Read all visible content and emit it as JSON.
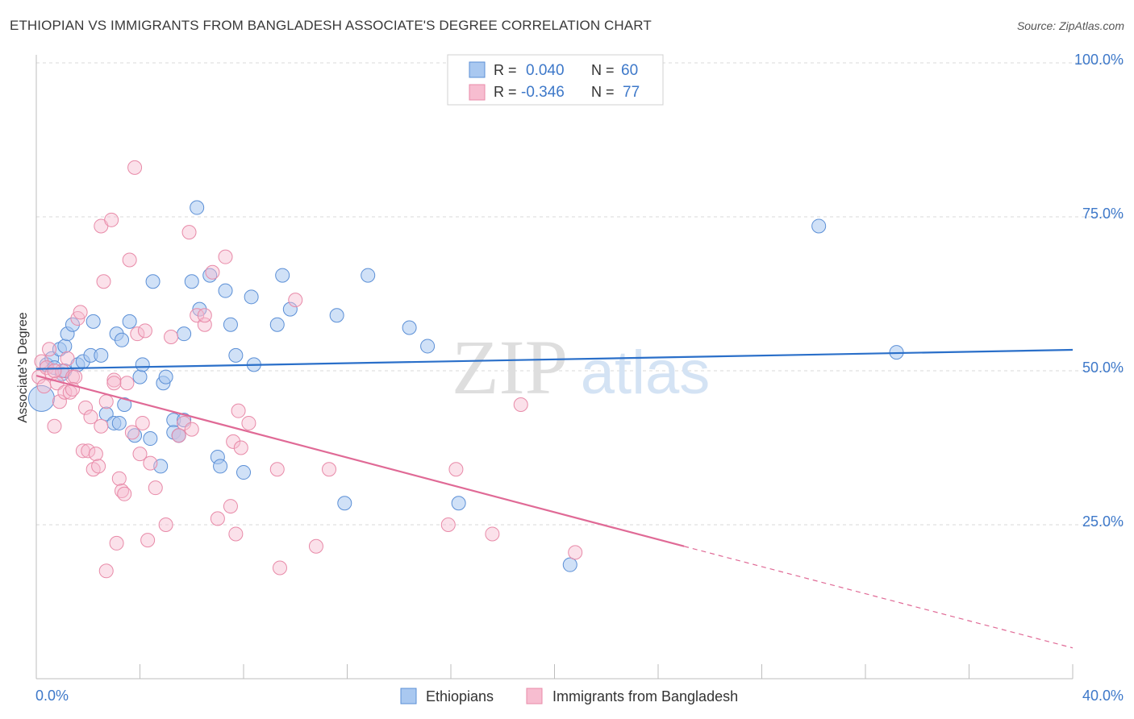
{
  "title": "ETHIOPIAN VS IMMIGRANTS FROM BANGLADESH ASSOCIATE'S DEGREE CORRELATION CHART",
  "source": "Source: ZipAtlas.com",
  "watermark": {
    "zip": "ZIP",
    "atlas": "atlas"
  },
  "chart_data": {
    "type": "scatter",
    "title": "ETHIOPIAN VS IMMIGRANTS FROM BANGLADESH ASSOCIATE'S DEGREE CORRELATION CHART",
    "xlabel": "",
    "ylabel": "Associate's Degree",
    "xlim": [
      0,
      40
    ],
    "ylim": [
      0,
      105
    ],
    "x_tick_labels": [
      "0.0%",
      "40.0%"
    ],
    "y_ticks": [
      25,
      50,
      75,
      100
    ],
    "y_tick_labels": [
      "25.0%",
      "50.0%",
      "75.0%",
      "100.0%"
    ],
    "grid": true,
    "legend": {
      "position": "top-center",
      "rows": [
        {
          "r_label": "R =",
          "r_value": "0.040",
          "n_label": "N =",
          "n_value": "60"
        },
        {
          "r_label": "R =",
          "r_value": "-0.346",
          "n_label": "N =",
          "n_value": "77"
        }
      ]
    },
    "bottom_legend": [
      "Ethiopians",
      "Immigrants from Bangladesh"
    ],
    "colors": {
      "ethiopians_fill": "#a9c8f0",
      "ethiopians_stroke": "#5b8fd6",
      "ethiopians_line": "#2a6fc9",
      "bangladesh_fill": "#f7bdd0",
      "bangladesh_stroke": "#e88aa8",
      "bangladesh_line": "#e06a96",
      "value_text": "#3d78c9",
      "grid": "#d9d9d9"
    },
    "series": [
      {
        "name": "Ethiopians",
        "R": 0.04,
        "N": 60,
        "trend": {
          "x0": 0,
          "y0": 50.3,
          "x1": 40,
          "y1": 53.4
        },
        "points": [
          [
            0.2,
            45.5
          ],
          [
            0.4,
            51.0
          ],
          [
            0.6,
            52.0
          ],
          [
            0.7,
            50.5
          ],
          [
            0.9,
            53.5
          ],
          [
            1.0,
            49.5
          ],
          [
            1.1,
            54.0
          ],
          [
            1.2,
            56.0
          ],
          [
            1.4,
            57.5
          ],
          [
            1.6,
            51.0
          ],
          [
            1.8,
            51.5
          ],
          [
            2.1,
            52.5
          ],
          [
            2.2,
            58.0
          ],
          [
            2.5,
            52.5
          ],
          [
            2.7,
            43.0
          ],
          [
            3.0,
            41.5
          ],
          [
            3.1,
            56.0
          ],
          [
            3.2,
            41.5
          ],
          [
            3.3,
            55.0
          ],
          [
            3.4,
            44.5
          ],
          [
            3.6,
            58.0
          ],
          [
            3.8,
            39.5
          ],
          [
            4.0,
            49.0
          ],
          [
            4.1,
            51.0
          ],
          [
            4.4,
            39.0
          ],
          [
            4.5,
            64.5
          ],
          [
            4.8,
            34.5
          ],
          [
            4.9,
            48.0
          ],
          [
            5.0,
            49.0
          ],
          [
            5.3,
            42.0
          ],
          [
            5.3,
            40.0
          ],
          [
            5.5,
            39.5
          ],
          [
            5.7,
            42.0
          ],
          [
            5.7,
            56.0
          ],
          [
            6.0,
            64.5
          ],
          [
            6.2,
            76.5
          ],
          [
            6.3,
            60.0
          ],
          [
            6.7,
            65.5
          ],
          [
            7.0,
            36.0
          ],
          [
            7.1,
            34.5
          ],
          [
            7.3,
            63.0
          ],
          [
            7.5,
            57.5
          ],
          [
            7.7,
            52.5
          ],
          [
            8.0,
            33.5
          ],
          [
            8.3,
            62.0
          ],
          [
            8.4,
            51.0
          ],
          [
            9.3,
            57.5
          ],
          [
            9.5,
            65.5
          ],
          [
            9.8,
            60.0
          ],
          [
            11.6,
            59.0
          ],
          [
            11.9,
            28.5
          ],
          [
            12.8,
            65.5
          ],
          [
            14.4,
            57.0
          ],
          [
            15.1,
            54.0
          ],
          [
            16.3,
            28.5
          ],
          [
            20.6,
            18.5
          ],
          [
            30.2,
            73.5
          ],
          [
            33.2,
            53.0
          ],
          [
            5.5,
            39.5
          ],
          [
            1.1,
            50.0
          ]
        ]
      },
      {
        "name": "Immigrants from Bangladesh",
        "R": -0.346,
        "N": 77,
        "trend": {
          "x0": 0,
          "y0": 49.2,
          "x1": 25,
          "y1": 21.5,
          "dash_x1": 40,
          "dash_y1": 5.0
        },
        "points": [
          [
            0.1,
            49.0
          ],
          [
            0.2,
            51.5
          ],
          [
            0.3,
            47.5
          ],
          [
            0.4,
            50.5
          ],
          [
            0.5,
            53.5
          ],
          [
            0.6,
            49.5
          ],
          [
            0.7,
            41.0
          ],
          [
            0.8,
            48.0
          ],
          [
            0.9,
            45.0
          ],
          [
            1.0,
            50.0
          ],
          [
            1.1,
            46.5
          ],
          [
            1.2,
            52.0
          ],
          [
            1.3,
            46.5
          ],
          [
            1.4,
            49.0
          ],
          [
            1.5,
            49.0
          ],
          [
            1.6,
            58.5
          ],
          [
            1.7,
            59.5
          ],
          [
            1.8,
            37.0
          ],
          [
            1.9,
            44.0
          ],
          [
            2.0,
            37.0
          ],
          [
            2.1,
            42.5
          ],
          [
            2.2,
            34.0
          ],
          [
            2.3,
            36.5
          ],
          [
            2.4,
            34.5
          ],
          [
            2.5,
            73.5
          ],
          [
            2.5,
            41.0
          ],
          [
            2.6,
            64.5
          ],
          [
            2.7,
            45.0
          ],
          [
            2.9,
            74.5
          ],
          [
            3.0,
            48.5
          ],
          [
            3.1,
            22.0
          ],
          [
            3.2,
            32.5
          ],
          [
            3.3,
            30.5
          ],
          [
            3.4,
            30.0
          ],
          [
            3.5,
            48.0
          ],
          [
            3.6,
            68.0
          ],
          [
            3.7,
            40.0
          ],
          [
            3.8,
            83.0
          ],
          [
            3.9,
            56.0
          ],
          [
            4.0,
            36.5
          ],
          [
            4.1,
            41.5
          ],
          [
            4.2,
            56.5
          ],
          [
            4.3,
            22.5
          ],
          [
            4.4,
            35.0
          ],
          [
            4.6,
            31.0
          ],
          [
            5.0,
            25.0
          ],
          [
            5.2,
            55.5
          ],
          [
            5.5,
            39.5
          ],
          [
            5.7,
            41.5
          ],
          [
            5.9,
            72.5
          ],
          [
            6.0,
            40.5
          ],
          [
            6.2,
            59.0
          ],
          [
            6.5,
            57.5
          ],
          [
            6.8,
            66.0
          ],
          [
            7.0,
            26.0
          ],
          [
            7.3,
            68.5
          ],
          [
            7.5,
            28.0
          ],
          [
            7.6,
            38.5
          ],
          [
            7.7,
            23.5
          ],
          [
            7.8,
            43.5
          ],
          [
            7.9,
            37.5
          ],
          [
            8.2,
            41.5
          ],
          [
            9.3,
            34.0
          ],
          [
            9.4,
            18.0
          ],
          [
            10.0,
            61.5
          ],
          [
            10.8,
            21.5
          ],
          [
            11.3,
            34.0
          ],
          [
            15.9,
            25.0
          ],
          [
            16.2,
            34.0
          ],
          [
            17.6,
            23.5
          ],
          [
            18.7,
            44.5
          ],
          [
            20.8,
            20.5
          ],
          [
            2.7,
            17.5
          ],
          [
            1.4,
            47.0
          ],
          [
            0.7,
            50.0
          ],
          [
            3.0,
            48.0
          ],
          [
            6.5,
            59.0
          ]
        ]
      }
    ]
  }
}
